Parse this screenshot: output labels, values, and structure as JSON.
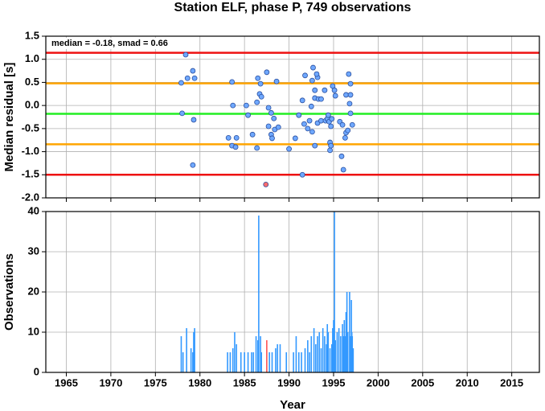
{
  "chart_data": [
    {
      "type": "scatter",
      "title": "Station ELF, phase P, 749 observations",
      "ylabel": "Median residual [s]",
      "annotation": "median = -0.18, smad = 0.66",
      "xlim": [
        1962.7,
        2018.1
      ],
      "xticks": [
        1965,
        1970,
        1975,
        1980,
        1985,
        1990,
        1995,
        2000,
        2005,
        2010,
        2015
      ],
      "ylim": [
        -2.0,
        1.5
      ],
      "yticks": [
        1.5,
        {
          "value": 1.0,
          "label": "1.0"
        },
        0.5,
        {
          "value": 0.0,
          "label": "0.0"
        },
        -0.5,
        {
          "value": -1.0,
          "label": "-1.0"
        },
        -1.5,
        {
          "value": -2.0,
          "label": "-2.0"
        }
      ],
      "grid": true,
      "hlines": [
        {
          "value": 1.14,
          "color": "#ee1111"
        },
        {
          "value": 0.48,
          "color": "#ffa500"
        },
        {
          "value": -0.18,
          "color": "#22ee22"
        },
        {
          "value": -0.84,
          "color": "#ffa500"
        },
        {
          "value": -1.5,
          "color": "#ee1111"
        }
      ],
      "series": [
        {
          "color": "#6fa8ff",
          "x": [
            1977.9,
            1978.4,
            1978.6,
            1979.2,
            1979.4,
            1978.0,
            1979.3,
            1979.2,
            1983.6,
            1983.7,
            1985.2,
            1983.2,
            1984.1,
            1983.6,
            1984.0,
            1985.4,
            1986.5,
            1986.8,
            1986.7,
            1986.9,
            1986.4,
            1987.5,
            1987.7,
            1988.0,
            1987.7,
            1988.0,
            1988.1,
            1988.6,
            1988.3,
            1988.4,
            1988.8,
            1986.4,
            1985.9,
            1990.0,
            1991.1,
            1990.7,
            1991.7,
            1991.5,
            1991.5,
            1991.8,
            1992.5,
            1992.3,
            1992.1,
            1992.6,
            1992.6,
            1992.7,
            1992.9,
            1993.2,
            1993.1,
            1992.9,
            1993.3,
            1993.6,
            1993.2,
            1993.6,
            1992.9,
            1994.0,
            1994.1,
            1994.3,
            1994.4,
            1994.5,
            1994.6,
            1994.6,
            1994.7,
            1994.8,
            1994.9,
            1995.1,
            1995.2,
            1994.7,
            1995.7,
            1995.9,
            1996.1,
            1996.0,
            1996.3,
            1996.4,
            1996.6,
            1996.7,
            1996.9,
            1996.4,
            1996.9,
            1996.8,
            1996.9,
            1997.1
          ],
          "values": [
            0.49,
            1.1,
            0.59,
            0.75,
            0.59,
            -0.17,
            -0.31,
            -1.29,
            0.51,
            0.0,
            0.0,
            -0.7,
            -0.7,
            -0.87,
            -0.9,
            -0.21,
            0.59,
            0.47,
            0.25,
            0.19,
            0.07,
            0.72,
            -0.05,
            -0.16,
            -0.45,
            -0.63,
            -0.71,
            0.52,
            -0.28,
            -0.52,
            -0.47,
            -0.92,
            -0.63,
            -0.94,
            -0.21,
            -0.71,
            -0.4,
            0.11,
            -1.5,
            0.65,
            -0.02,
            -0.33,
            -0.5,
            -0.57,
            0.54,
            0.82,
            0.33,
            0.61,
            0.68,
            0.16,
            0.14,
            0.14,
            -0.38,
            -0.33,
            -0.87,
            0.33,
            -0.33,
            -0.29,
            -0.21,
            -0.35,
            -0.8,
            -0.97,
            -0.45,
            -0.29,
            0.42,
            0.33,
            0.21,
            -0.87,
            -0.35,
            -1.1,
            -1.39,
            -0.42,
            -0.7,
            -0.59,
            -0.54,
            0.68,
            0.47,
            0.23,
            0.23,
            0.04,
            -0.17,
            -0.42
          ]
        },
        {
          "color": "#ff6b6b",
          "x": [
            1987.4
          ],
          "values": [
            -1.71
          ]
        }
      ]
    },
    {
      "type": "bar",
      "ylabel": "Observations",
      "xlabel": "Year",
      "xlim": [
        1962.7,
        2018.1
      ],
      "xticks": [
        1965,
        1970,
        1975,
        1980,
        1985,
        1990,
        1995,
        2000,
        2005,
        2010,
        2015
      ],
      "ylim": [
        0,
        40
      ],
      "yticks": [
        0,
        10,
        20,
        30,
        40
      ],
      "grid": true,
      "series": [
        {
          "color": "#3399ff",
          "x": [
            1977.9,
            1978.1,
            1978.5,
            1979.0,
            1979.2,
            1979.3,
            1979.4,
            1983.1,
            1983.4,
            1983.7,
            1983.9,
            1984.1,
            1984.6,
            1985.0,
            1985.4,
            1985.8,
            1986.0,
            1986.3,
            1986.5,
            1986.6,
            1986.8,
            1986.9,
            1987.8,
            1988.1,
            1988.5,
            1988.7,
            1989.0,
            1989.7,
            1990.5,
            1990.8,
            1991.1,
            1991.4,
            1991.8,
            1992.1,
            1992.3,
            1992.5,
            1992.8,
            1993.0,
            1993.2,
            1993.4,
            1993.6,
            1993.8,
            1994.0,
            1994.2,
            1994.3,
            1994.4,
            1994.6,
            1994.8,
            1994.9,
            1995.0,
            1995.1,
            1995.2,
            1995.4,
            1995.6,
            1995.8,
            1996.0,
            1996.1,
            1996.2,
            1996.3,
            1996.4,
            1996.5,
            1996.6,
            1996.8,
            1996.9,
            1997.0,
            1997.05,
            1997.1,
            1997.2
          ],
          "values": [
            9,
            5,
            11,
            6,
            5,
            10,
            11,
            5,
            5,
            6,
            10,
            7,
            5,
            5,
            5,
            5,
            5,
            9,
            8,
            39,
            9,
            5,
            5,
            5,
            6,
            7,
            7,
            5,
            5,
            9,
            5,
            5,
            6,
            8,
            5,
            9,
            11,
            7,
            9,
            10,
            6,
            11,
            9,
            7,
            12,
            10,
            6,
            7,
            11,
            13,
            40,
            8,
            10,
            11,
            9,
            12,
            9,
            13,
            9,
            15,
            20,
            10,
            20,
            9,
            18,
            10,
            9,
            6
          ]
        },
        {
          "color": "#ff5555",
          "x": [
            1987.5
          ],
          "values": [
            8
          ]
        }
      ]
    }
  ]
}
